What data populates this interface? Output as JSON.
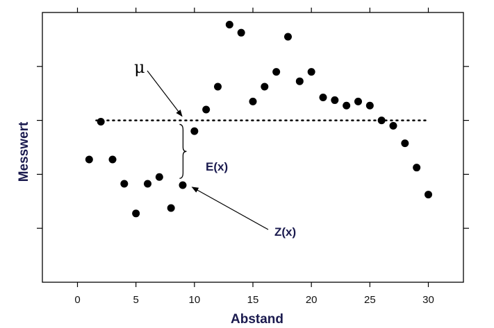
{
  "chart_data": {
    "type": "scatter",
    "xlabel": "Abstand",
    "ylabel": "Messwert",
    "xlim": [
      -3,
      33
    ],
    "ylim": [
      0,
      10
    ],
    "x_ticks": [
      0,
      5,
      10,
      15,
      20,
      25,
      30
    ],
    "x_tick_labels": [
      "0",
      "5",
      "10",
      "15",
      "20",
      "25",
      "30"
    ],
    "y_ticks": [
      2,
      4,
      6,
      8
    ],
    "y_tick_labels_shown": false,
    "grid": false,
    "legend": "none",
    "points": {
      "x": [
        1,
        2,
        3,
        4,
        5,
        6,
        7,
        8,
        9,
        10,
        11,
        12,
        13,
        14,
        15,
        16,
        17,
        18,
        19,
        20,
        21,
        22,
        23,
        24,
        25,
        26,
        27,
        28,
        29,
        30
      ],
      "y": [
        4.55,
        5.95,
        4.55,
        3.65,
        2.55,
        3.65,
        3.9,
        2.75,
        3.6,
        5.6,
        6.4,
        7.25,
        9.55,
        9.25,
        6.7,
        7.25,
        7.8,
        9.1,
        7.45,
        7.8,
        6.85,
        6.75,
        6.55,
        6.7,
        6.55,
        6.0,
        5.8,
        5.15,
        4.25,
        3.25
      ]
    },
    "mean_line": {
      "y": 6.0,
      "x_start": 1.6,
      "x_end": 30,
      "style": "dotted"
    },
    "annotations": {
      "mu": {
        "text": "μ",
        "arrow_to": [
          9,
          6.0
        ]
      },
      "expectation": {
        "text": "E(x)",
        "brace_from_y": 3.85,
        "brace_to_y": 5.85,
        "brace_x": 9.5
      },
      "observation": {
        "text": "Z(x)",
        "arrow_to": [
          9.8,
          3.55
        ]
      }
    },
    "colors": {
      "points": "#000000",
      "axis_title": "#1a1a4e",
      "annotation_text": "#1a1a4e",
      "frame": "#000000"
    }
  }
}
